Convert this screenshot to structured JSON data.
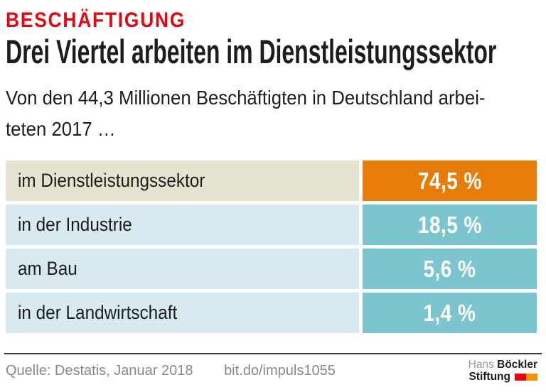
{
  "header": {
    "kicker": "BESCHÄFTIGUNG",
    "title": "Drei Viertel arbeiten im Dienstleistungssektor",
    "subtitle_line1": "Von den 44,3 Millionen Beschäftigten in Deutschland arbei-",
    "subtitle_line2": "teten 2017 …"
  },
  "chart_data": {
    "type": "table",
    "kicker": "BESCHÄFTIGUNG",
    "title": "Drei Viertel arbeiten im Dienstleistungssektor",
    "subtitle": "Von den 44,3 Millionen Beschäftigten in Deutschland arbeiteten 2017 …",
    "unit": "%",
    "categories": [
      "im Dienstleistungssektor",
      "in der Industrie",
      "am Bau",
      "in der Landwirtschaft"
    ],
    "values": [
      74.5,
      18.5,
      5.6,
      1.4
    ],
    "rows": [
      {
        "label": "im Dienstleistungssektor",
        "value": 74.5,
        "value_label": "74,5 %",
        "label_bg": "#e6e2d0",
        "value_bg": "#e87c08",
        "highlighted": true
      },
      {
        "label": "in der Industrie",
        "value": 18.5,
        "value_label": "18,5 %",
        "label_bg": "#d8e9f0",
        "value_bg": "#7cc4ce",
        "highlighted": false
      },
      {
        "label": "am Bau",
        "value": 5.6,
        "value_label": "5,6 %",
        "label_bg": "#d8e9f0",
        "value_bg": "#7cc4ce",
        "highlighted": false
      },
      {
        "label": "in der Landwirtschaft",
        "value": 1.4,
        "value_label": "1,4 %",
        "label_bg": "#d8e9f0",
        "value_bg": "#7cc4ce",
        "highlighted": false
      }
    ]
  },
  "footer": {
    "source": "Quelle: Destatis, Januar 2018",
    "link": "bit.do/impuls1055"
  },
  "logo": {
    "first_name": "Hans",
    "last_name": "Böckler",
    "word": "Stiftung"
  },
  "colors": {
    "kicker-red": "#e30613",
    "text-dark": "#1d1d1b",
    "value-text": "#ffffff",
    "beige": "#e6e2d0",
    "light-blue": "#d8e9f0",
    "teal": "#7cc4ce",
    "orange": "#e87c08",
    "rule": "#3a3a39",
    "footer-gray": "#87888a",
    "logo-gray": "#9c9b9b",
    "logo-red": "#e30613",
    "logo-orange": "#f29400"
  }
}
